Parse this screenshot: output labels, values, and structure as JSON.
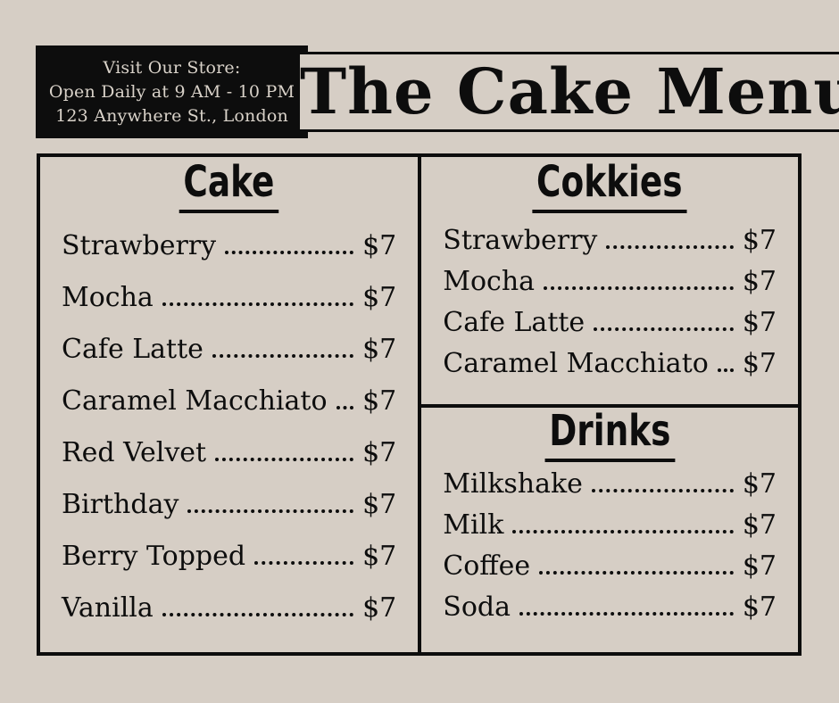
{
  "theme": {
    "bg": "#d6cec5",
    "ink": "#0d0d0d",
    "store_text": "#d9d2c9"
  },
  "header": {
    "store_lines": [
      "Visit Our Store:",
      "Open Daily at 9 AM - 10 PM",
      "123 Anywhere St., London"
    ],
    "title": "The Cake Menu"
  },
  "menu": {
    "sections": [
      {
        "id": "cake",
        "title": "Cake",
        "items": [
          {
            "name": "Strawberry",
            "price": "$7"
          },
          {
            "name": "Mocha",
            "price": "$7"
          },
          {
            "name": "Cafe Latte",
            "price": "$7"
          },
          {
            "name": "Caramel Macchiato",
            "price": "$7"
          },
          {
            "name": "Red Velvet",
            "price": "$7"
          },
          {
            "name": "Birthday",
            "price": "$7"
          },
          {
            "name": "Berry Topped",
            "price": "$7"
          },
          {
            "name": "Vanilla",
            "price": "$7"
          }
        ]
      },
      {
        "id": "cookies",
        "title": "Cokkies",
        "items": [
          {
            "name": "Strawberry",
            "price": "$7"
          },
          {
            "name": "Mocha",
            "price": "$7"
          },
          {
            "name": "Cafe Latte",
            "price": "$7"
          },
          {
            "name": "Caramel Macchiato",
            "price": "$7"
          }
        ]
      },
      {
        "id": "drinks",
        "title": "Drinks",
        "items": [
          {
            "name": "Milkshake",
            "price": "$7"
          },
          {
            "name": "Milk",
            "price": "$7"
          },
          {
            "name": "Coffee",
            "price": "$7"
          },
          {
            "name": "Soda",
            "price": "$7"
          }
        ]
      }
    ]
  }
}
